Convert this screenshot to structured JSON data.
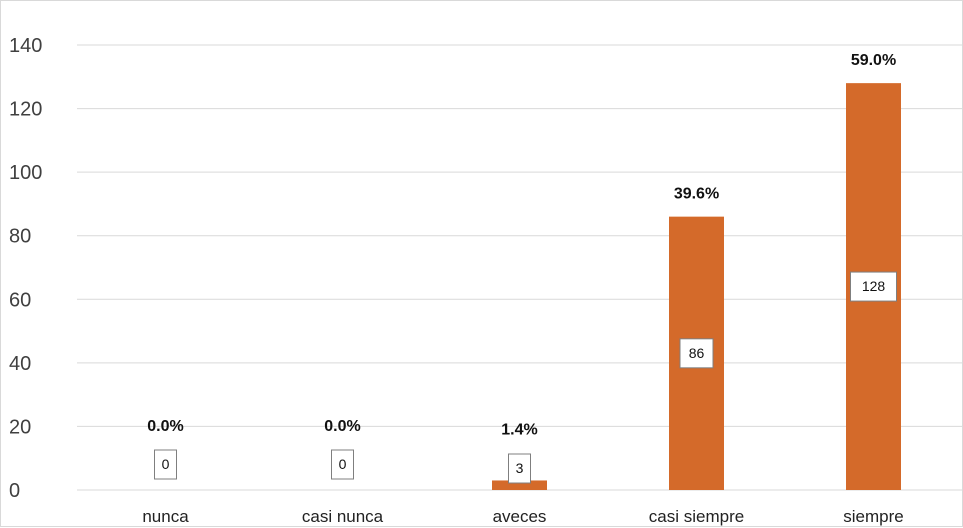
{
  "chart_data": {
    "type": "bar",
    "title": "",
    "xlabel": "",
    "ylabel": "",
    "categories": [
      "nunca",
      "casi nunca",
      "aveces",
      "casi siempre",
      "siempre"
    ],
    "values": [
      0,
      0,
      3,
      86,
      128
    ],
    "value_labels": [
      "0",
      "0",
      "3",
      "86",
      "128"
    ],
    "percent_labels": [
      "0.0%",
      "0.0%",
      "1.4%",
      "39.6%",
      "59.0%"
    ],
    "ylim": [
      0,
      140
    ],
    "yticks": [
      "0",
      "20",
      "40",
      "60",
      "80",
      "100",
      "120",
      "140"
    ],
    "ytick_values": [
      0,
      20,
      40,
      60,
      80,
      100,
      120,
      140
    ],
    "grid": true,
    "legend": "none",
    "bar_color": "#D46A2A",
    "grid_color": "#d9d9d9"
  }
}
